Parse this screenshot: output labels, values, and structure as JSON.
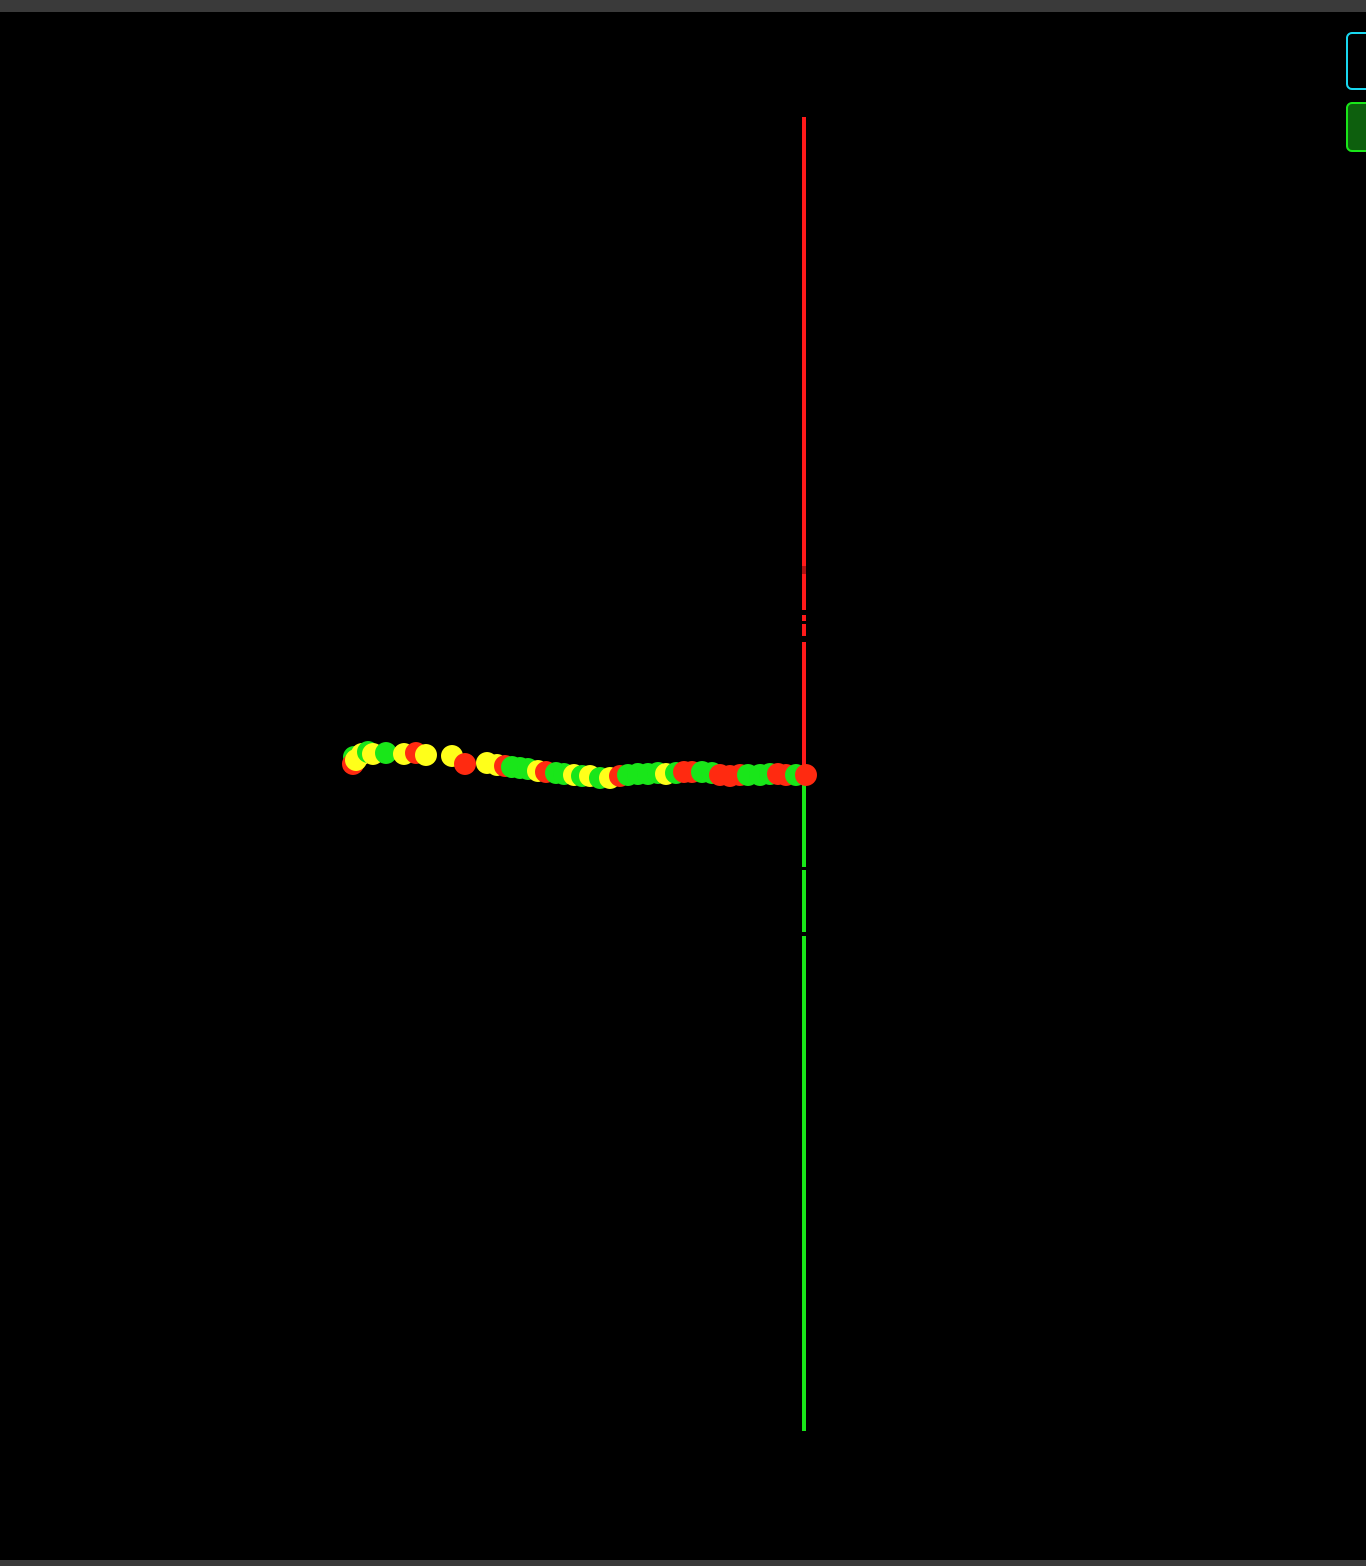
{
  "colors": {
    "background": "#000000",
    "frame": "#3a3a3a",
    "axis_upper": "#ff1a1a",
    "axis_lower": "#19e619",
    "point_green": "#19e619",
    "point_yellow": "#ffff1a",
    "point_red": "#ff2a10",
    "button_outline_border": "#19d8f0",
    "button_solid_border": "#19e619",
    "button_solid_fill": "#0d5f0d"
  },
  "controls": {
    "buttons": [
      {
        "name": "outline-control-button",
        "label": "",
        "style": "outline"
      },
      {
        "name": "solid-control-button",
        "label": "",
        "style": "solid"
      }
    ]
  }
}
